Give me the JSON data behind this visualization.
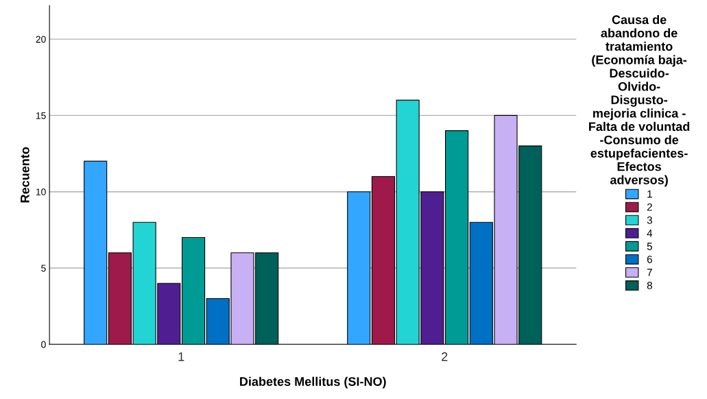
{
  "chart_data": {
    "type": "bar",
    "xlabel": "Diabetes Mellitus (SI-NO)",
    "ylabel": "Recuento",
    "legend_title": "Causa de\nabandono de\ntratamiento\n(Economía baja-\nDescuido-\nOlvido-\nDisgusto-\nmejoria clinica -\nFalta de voluntad\n-Consumo de\nestupefacientes-\nEfectos\nadversos)",
    "categories": [
      "1",
      "2"
    ],
    "series": [
      {
        "name": "1",
        "color": "#33a7ff",
        "values": [
          12,
          10
        ]
      },
      {
        "name": "2",
        "color": "#9e1a4a",
        "values": [
          6,
          11
        ]
      },
      {
        "name": "3",
        "color": "#23d4d4",
        "values": [
          8,
          16
        ]
      },
      {
        "name": "4",
        "color": "#4f1f91",
        "values": [
          4,
          10
        ]
      },
      {
        "name": "5",
        "color": "#009b95",
        "values": [
          7,
          14
        ]
      },
      {
        "name": "6",
        "color": "#0070c5",
        "values": [
          3,
          8
        ]
      },
      {
        "name": "7",
        "color": "#c8b0f5",
        "values": [
          6,
          15
        ]
      },
      {
        "name": "8",
        "color": "#00605a",
        "values": [
          6,
          13
        ]
      }
    ],
    "ylim": [
      0,
      22.2
    ],
    "yticks": [
      0,
      5,
      10,
      15,
      20
    ],
    "grid": "y",
    "legend": "right"
  }
}
